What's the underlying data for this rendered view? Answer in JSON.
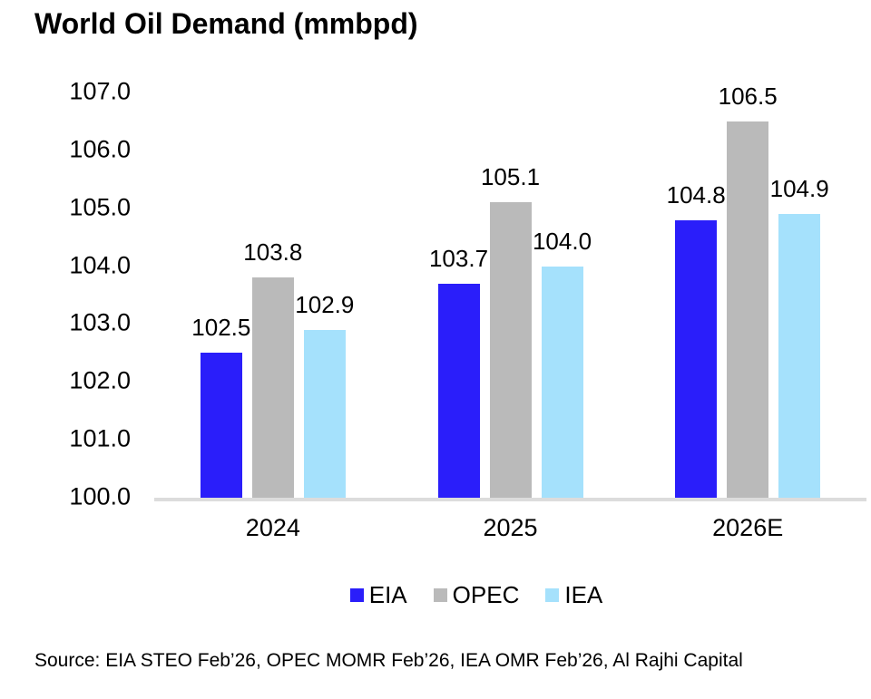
{
  "title": "World Oil Demand (mmbpd)",
  "source_note": "Source: EIA STEO Feb’26, OPEC MOMR Feb’26, IEA OMR Feb’26, Al Rajhi Capital",
  "colors": {
    "eia": "#2A1EFA",
    "opec": "#BABABA",
    "iea": "#A5E1FC",
    "axis_line": "#DCDCDC",
    "text": "#000000",
    "background": "#FFFFFF"
  },
  "chart_data": {
    "type": "bar",
    "title": "World Oil Demand (mmbpd)",
    "categories": [
      "2024",
      "2025",
      "2026E"
    ],
    "series": [
      {
        "name": "EIA",
        "color": "#2A1EFA",
        "values": [
          102.5,
          103.7,
          104.8
        ]
      },
      {
        "name": "OPEC",
        "color": "#BABABA",
        "values": [
          103.8,
          105.1,
          106.5
        ]
      },
      {
        "name": "IEA",
        "color": "#A5E1FC",
        "values": [
          102.9,
          104.0,
          104.9
        ]
      }
    ],
    "xlabel": "",
    "ylabel": "",
    "ylim": [
      100.0,
      107.0
    ],
    "ytick_interval": 1.0,
    "yticks": [
      "107.0",
      "106.0",
      "105.0",
      "104.0",
      "103.0",
      "102.0",
      "101.0",
      "100.0"
    ],
    "grid": false,
    "legend_position": "bottom",
    "value_labels_shown": true,
    "value_label_decimals": 1
  }
}
